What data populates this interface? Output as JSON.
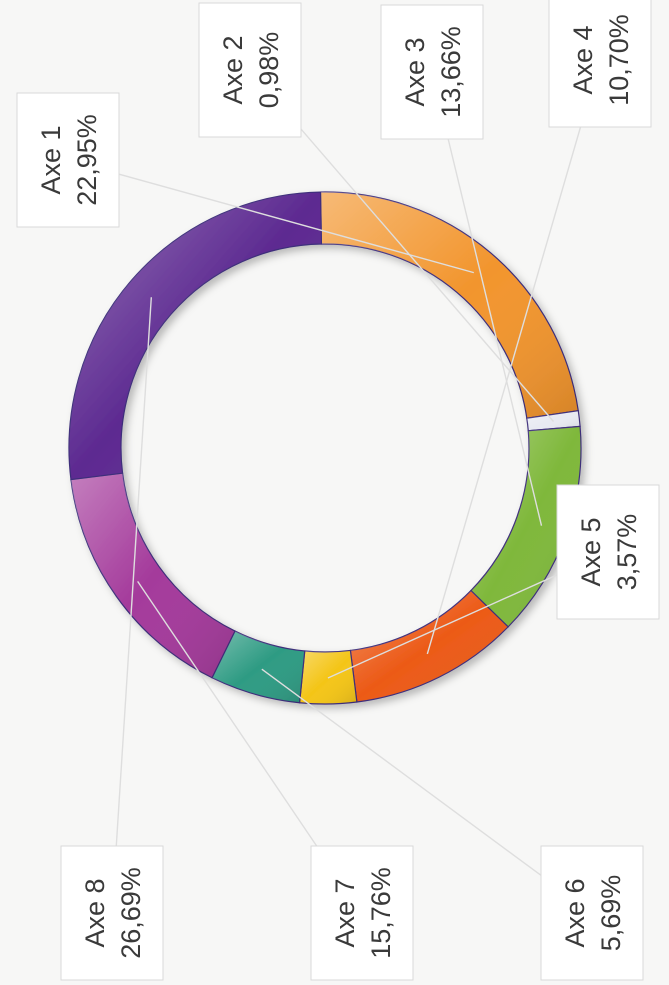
{
  "chart_data": {
    "type": "pie",
    "style": "donut",
    "title": "",
    "orientation": "rotated 90 degrees clockwise",
    "slices": [
      {
        "label": "Axe 1",
        "value_text": "22,95%",
        "value": 22.95,
        "color": "#f2952d"
      },
      {
        "label": "Axe 2",
        "value_text": "0,98%",
        "value": 0.98,
        "color": "#e8eaf2"
      },
      {
        "label": "Axe 3",
        "value_text": "13,66%",
        "value": 13.66,
        "color": "#7fb83b"
      },
      {
        "label": "Axe 4",
        "value_text": "10,70%",
        "value": 10.7,
        "color": "#ec5a17"
      },
      {
        "label": "Axe 5",
        "value_text": "3,57%",
        "value": 3.57,
        "color": "#f4c518"
      },
      {
        "label": "Axe 6",
        "value_text": "5,69%",
        "value": 5.69,
        "color": "#2e9b83"
      },
      {
        "label": "Axe 7",
        "value_text": "15,76%",
        "value": 15.76,
        "color": "#a43a9b"
      },
      {
        "label": "Axe 8",
        "value_text": "26,69%",
        "value": 26.69,
        "color": "#5d2a91"
      }
    ]
  }
}
